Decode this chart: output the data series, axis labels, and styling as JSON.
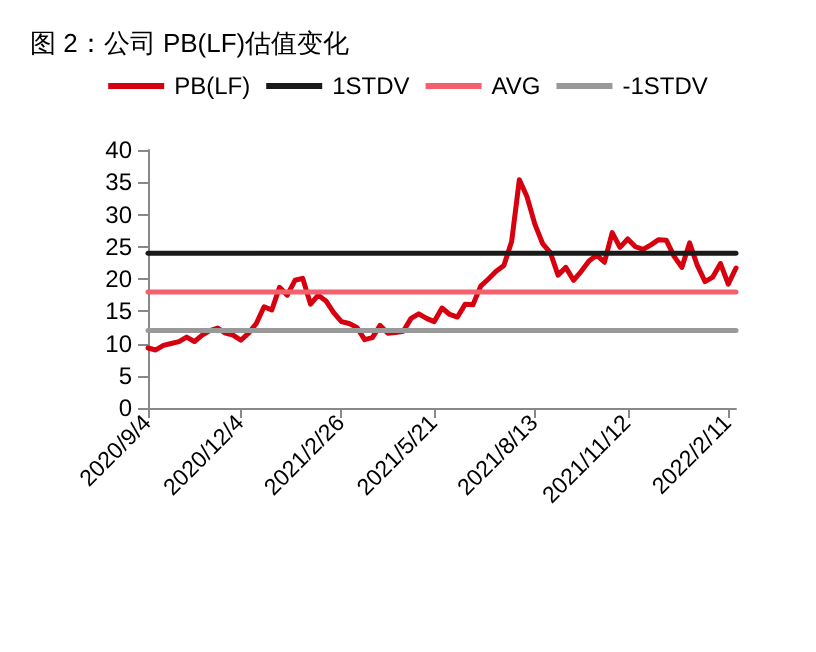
{
  "chart_data": {
    "type": "line",
    "title": "图 2：公司 PB(LF)估值变化",
    "categories": [
      "2020/9/4",
      null,
      null,
      null,
      null,
      null,
      null,
      null,
      null,
      null,
      null,
      null,
      "2020/12/4",
      null,
      null,
      null,
      null,
      null,
      null,
      null,
      null,
      null,
      null,
      null,
      null,
      "2021/2/26",
      null,
      null,
      null,
      null,
      null,
      null,
      null,
      null,
      null,
      null,
      null,
      "2021/5/21",
      null,
      null,
      null,
      null,
      null,
      null,
      null,
      null,
      null,
      null,
      null,
      null,
      "2021/8/13",
      null,
      null,
      null,
      null,
      null,
      null,
      null,
      null,
      null,
      null,
      null,
      "2021/11/12",
      null,
      null,
      null,
      null,
      null,
      null,
      null,
      null,
      null,
      null,
      null,
      null,
      "2022/2/11",
      null
    ],
    "series": [
      {
        "name": "PB(LF)",
        "color": "#d7000f",
        "values": [
          9.3,
          9.0,
          9.7,
          10.0,
          10.3,
          11.0,
          10.3,
          11.3,
          12.0,
          12.4,
          11.6,
          11.3,
          10.5,
          11.6,
          13.1,
          15.7,
          15.2,
          18.7,
          17.5,
          19.8,
          20.1,
          16.1,
          17.5,
          16.6,
          14.8,
          13.4,
          13.1,
          12.5,
          10.6,
          10.9,
          12.8,
          11.6,
          11.7,
          11.9,
          13.9,
          14.6,
          13.9,
          13.4,
          15.5,
          14.5,
          14.1,
          16.1,
          16.0,
          18.9,
          20.0,
          21.2,
          22.1,
          25.8,
          35.4,
          32.7,
          28.5,
          25.5,
          24.1,
          20.6,
          21.8,
          19.8,
          21.2,
          22.8,
          23.7,
          22.6,
          27.2,
          24.9,
          26.2,
          25.0,
          24.6,
          25.3,
          26.1,
          26.0,
          23.5,
          21.8,
          25.6,
          22.1,
          19.6,
          20.3,
          22.4,
          19.2,
          21.7
        ]
      },
      {
        "name": "1STDV",
        "color": "#1a1a1a",
        "values": [
          24,
          24,
          24,
          24,
          24,
          24,
          24,
          24,
          24,
          24,
          24,
          24,
          24,
          24,
          24,
          24,
          24,
          24,
          24,
          24,
          24,
          24,
          24,
          24,
          24,
          24,
          24,
          24,
          24,
          24,
          24,
          24,
          24,
          24,
          24,
          24,
          24,
          24,
          24,
          24,
          24,
          24,
          24,
          24,
          24,
          24,
          24,
          24,
          24,
          24,
          24,
          24,
          24,
          24,
          24,
          24,
          24,
          24,
          24,
          24,
          24,
          24,
          24,
          24,
          24,
          24,
          24,
          24,
          24,
          24,
          24,
          24,
          24,
          24,
          24,
          24,
          24
        ]
      },
      {
        "name": "AVG",
        "color": "#f5606e",
        "values": [
          18,
          18,
          18,
          18,
          18,
          18,
          18,
          18,
          18,
          18,
          18,
          18,
          18,
          18,
          18,
          18,
          18,
          18,
          18,
          18,
          18,
          18,
          18,
          18,
          18,
          18,
          18,
          18,
          18,
          18,
          18,
          18,
          18,
          18,
          18,
          18,
          18,
          18,
          18,
          18,
          18,
          18,
          18,
          18,
          18,
          18,
          18,
          18,
          18,
          18,
          18,
          18,
          18,
          18,
          18,
          18,
          18,
          18,
          18,
          18,
          18,
          18,
          18,
          18,
          18,
          18,
          18,
          18,
          18,
          18,
          18,
          18,
          18,
          18,
          18,
          18,
          18
        ]
      },
      {
        "name": "-1STDV",
        "color": "#999999",
        "values": [
          12,
          12,
          12,
          12,
          12,
          12,
          12,
          12,
          12,
          12,
          12,
          12,
          12,
          12,
          12,
          12,
          12,
          12,
          12,
          12,
          12,
          12,
          12,
          12,
          12,
          12,
          12,
          12,
          12,
          12,
          12,
          12,
          12,
          12,
          12,
          12,
          12,
          12,
          12,
          12,
          12,
          12,
          12,
          12,
          12,
          12,
          12,
          12,
          12,
          12,
          12,
          12,
          12,
          12,
          12,
          12,
          12,
          12,
          12,
          12,
          12,
          12,
          12,
          12,
          12,
          12,
          12,
          12,
          12,
          12,
          12,
          12,
          12,
          12,
          12,
          12,
          12
        ]
      }
    ],
    "ylim": [
      0,
      40
    ],
    "yticks": [
      0,
      5,
      10,
      15,
      20,
      25,
      30,
      35,
      40
    ],
    "grid": false,
    "legend": "top",
    "marker": "none",
    "line_style": "solid"
  }
}
